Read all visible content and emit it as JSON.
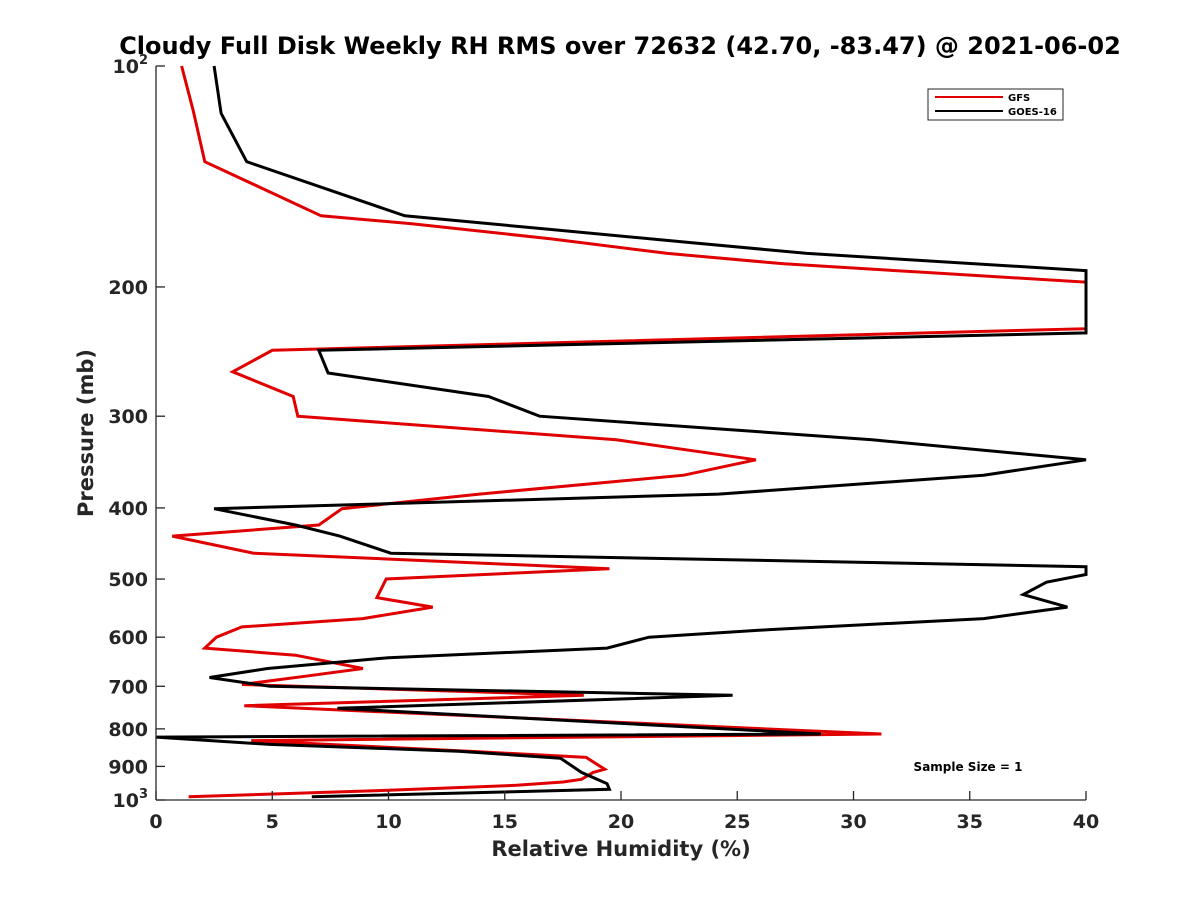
{
  "chart_data": {
    "type": "line",
    "title": "Cloudy Full Disk Weekly RH RMS over 72632 (42.70, -83.47) @ 2021-06-02",
    "xlabel": "Relative Humidity (%)",
    "ylabel": "Pressure (mb)",
    "xlim": [
      0,
      40
    ],
    "ylim": [
      100,
      1000
    ],
    "y_scale": "log",
    "y_reversed": true,
    "grid": false,
    "legend_location": "top-right",
    "x_ticks": [
      0,
      5,
      10,
      15,
      20,
      25,
      30,
      35,
      40
    ],
    "x_tick_labels": [
      "0",
      "5",
      "10",
      "15",
      "20",
      "25",
      "30",
      "35",
      "40"
    ],
    "y_ticks": [
      100,
      200,
      300,
      400,
      500,
      600,
      700,
      800,
      900,
      1000
    ],
    "y_tick_labels": [
      {
        "base": "10",
        "exp": "2"
      },
      {
        "base": "200",
        "exp": ""
      },
      {
        "base": "300",
        "exp": ""
      },
      {
        "base": "400",
        "exp": ""
      },
      {
        "base": "500",
        "exp": ""
      },
      {
        "base": "600",
        "exp": ""
      },
      {
        "base": "700",
        "exp": ""
      },
      {
        "base": "800",
        "exp": ""
      },
      {
        "base": "900",
        "exp": ""
      },
      {
        "base": "10",
        "exp": "3"
      }
    ],
    "annotation": "Sample Size = 1",
    "series": [
      {
        "name": "GFS",
        "color": "#e00000",
        "points": [
          [
            1.1,
            100
          ],
          [
            1.6,
            115
          ],
          [
            2.1,
            135
          ],
          [
            7.1,
            160
          ],
          [
            11,
            164
          ],
          [
            17,
            172
          ],
          [
            22,
            180
          ],
          [
            27,
            186
          ],
          [
            33,
            191
          ],
          [
            40,
            197
          ],
          [
            40,
            228
          ],
          [
            5,
            244
          ],
          [
            3.3,
            261
          ],
          [
            5.9,
            282
          ],
          [
            6.1,
            300
          ],
          [
            19.8,
            323
          ],
          [
            25.8,
            344
          ],
          [
            22.7,
            361
          ],
          [
            13.9,
            383
          ],
          [
            8,
            401
          ],
          [
            7,
            422
          ],
          [
            0.7,
            437
          ],
          [
            4.2,
            461
          ],
          [
            19.5,
            484
          ],
          [
            9.9,
            500
          ],
          [
            9.5,
            530
          ],
          [
            11.9,
            546
          ],
          [
            8.9,
            566
          ],
          [
            3.7,
            581
          ],
          [
            2.6,
            600
          ],
          [
            2.1,
            621
          ],
          [
            6,
            635
          ],
          [
            8.9,
            662
          ],
          [
            6.6,
            677
          ],
          [
            3.7,
            696
          ],
          [
            18.4,
            720
          ],
          [
            3.8,
            744
          ],
          [
            31.2,
            813
          ],
          [
            4.1,
            830
          ],
          [
            14,
            860
          ],
          [
            18.5,
            875
          ],
          [
            19.3,
            908
          ],
          [
            18.8,
            917
          ],
          [
            18.3,
            937
          ],
          [
            17.5,
            945
          ],
          [
            15.5,
            955
          ],
          [
            10,
            970
          ],
          [
            1.4,
            990
          ]
        ]
      },
      {
        "name": "GOES-16",
        "color": "#000000",
        "points": [
          [
            2.5,
            100
          ],
          [
            2.8,
            116
          ],
          [
            3.9,
            135
          ],
          [
            10.7,
            160
          ],
          [
            17,
            167
          ],
          [
            23,
            174
          ],
          [
            28,
            180
          ],
          [
            40,
            190
          ],
          [
            40,
            231
          ],
          [
            7,
            244
          ],
          [
            7.4,
            262
          ],
          [
            14.3,
            282
          ],
          [
            16.5,
            300
          ],
          [
            30.8,
            323
          ],
          [
            40,
            344
          ],
          [
            35.6,
            361
          ],
          [
            24.2,
            383
          ],
          [
            2.5,
            401
          ],
          [
            6,
            422
          ],
          [
            7.9,
            437
          ],
          [
            10.1,
            461
          ],
          [
            40,
            481
          ],
          [
            40,
            493
          ],
          [
            38.3,
            505
          ],
          [
            37.3,
            525
          ],
          [
            39.2,
            546
          ],
          [
            35.6,
            566
          ],
          [
            26.4,
            586
          ],
          [
            21.2,
            600
          ],
          [
            19.4,
            621
          ],
          [
            10,
            640
          ],
          [
            4.8,
            662
          ],
          [
            2.3,
            681
          ],
          [
            4.9,
            700
          ],
          [
            24.8,
            720
          ],
          [
            7.8,
            750
          ],
          [
            28.6,
            813
          ],
          [
            0,
            821
          ],
          [
            4.9,
            840
          ],
          [
            13,
            858
          ],
          [
            17.4,
            877
          ],
          [
            18.3,
            917
          ],
          [
            19.4,
            950
          ],
          [
            19.5,
            967
          ],
          [
            6.7,
            990
          ]
        ]
      }
    ]
  }
}
